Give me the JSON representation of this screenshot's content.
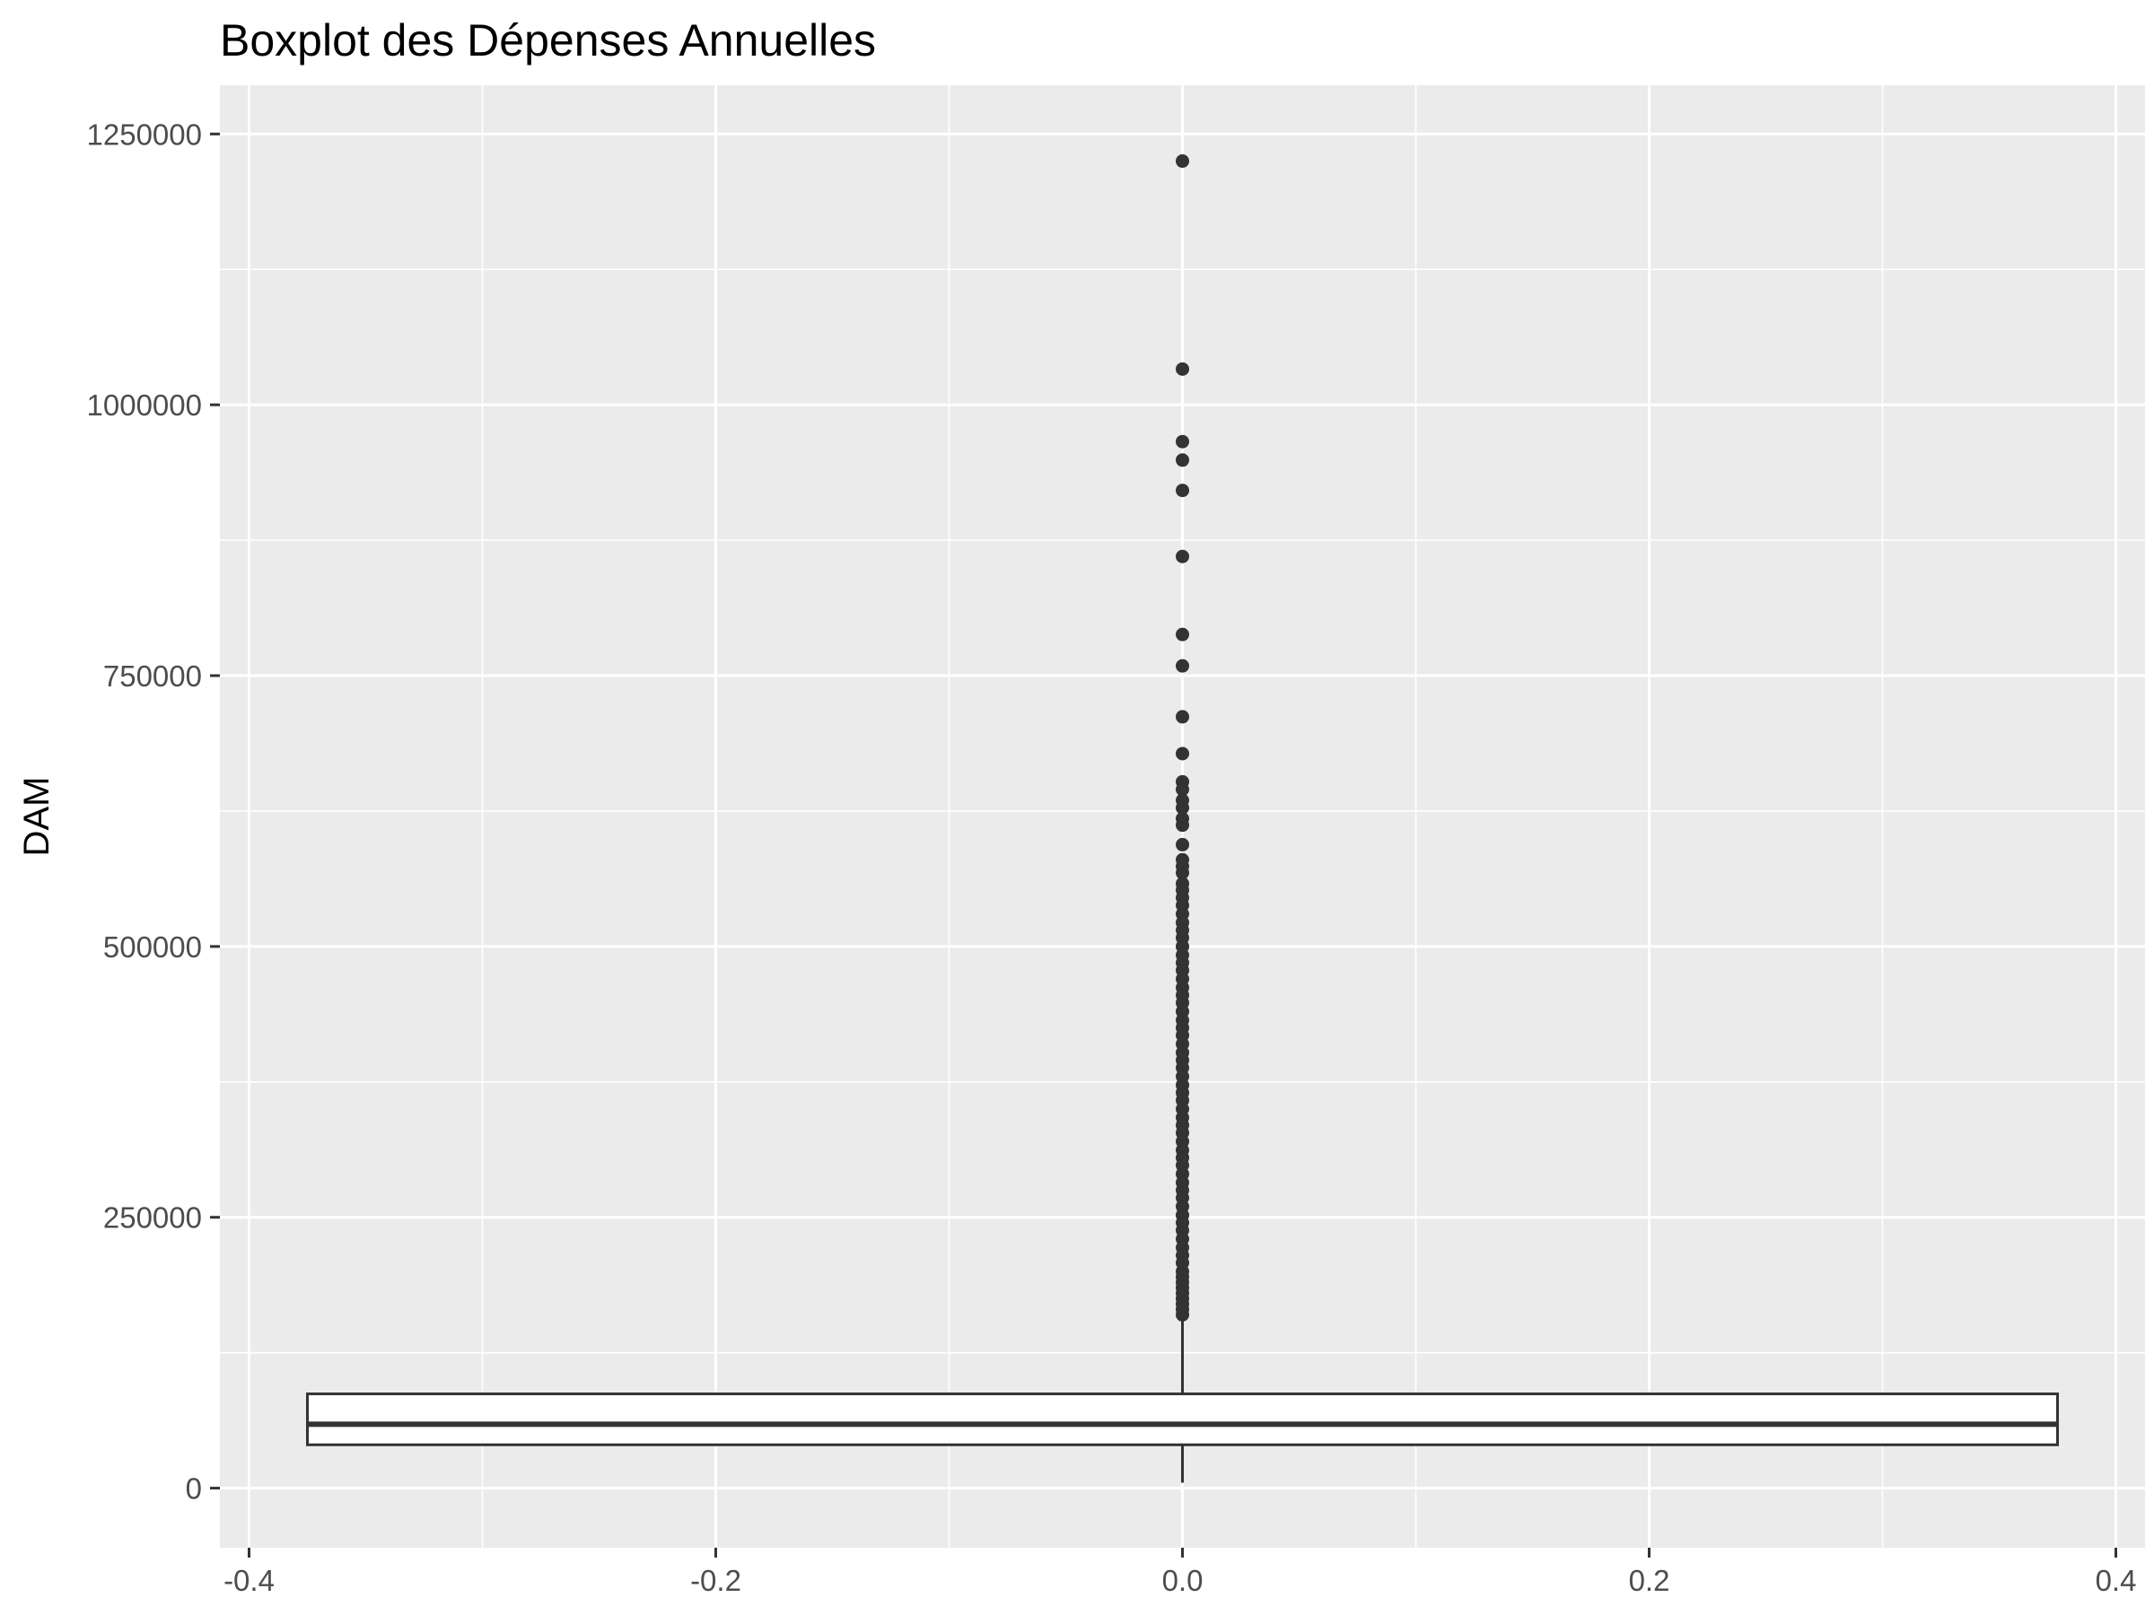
{
  "chart_data": {
    "type": "boxplot",
    "title": "Boxplot des Dépenses Annuelles",
    "xlabel": "",
    "ylabel": "DAM",
    "xlim": [
      -0.4125,
      0.4125
    ],
    "ylim": [
      -55000,
      1295000
    ],
    "x_ticks": [
      -0.4,
      -0.2,
      0.0,
      0.2,
      0.4
    ],
    "x_tick_labels": [
      "-0.4",
      "-0.2",
      "0.0",
      "0.2",
      "0.4"
    ],
    "y_ticks": [
      0,
      250000,
      500000,
      750000,
      1000000,
      1250000
    ],
    "y_tick_labels": [
      "0",
      "250000",
      "500000",
      "750000",
      "1000000",
      "1250000"
    ],
    "grid": true,
    "colors": {
      "panel": "#ebebeb",
      "grid": "#ffffff",
      "box": "#333333",
      "outlier": "#333333",
      "tick_text": "#4d4d4d"
    },
    "box": {
      "x_center": 0.0,
      "x_left": -0.375,
      "x_right": 0.375,
      "whisker_low": 5000,
      "q1": 40000,
      "median": 59000,
      "q3": 87000,
      "whisker_high": 157000
    },
    "outliers": [
      1225000,
      1033000,
      966000,
      949000,
      921000,
      860000,
      788000,
      759000,
      712000,
      678000,
      652000,
      645000,
      635000,
      628000,
      618000,
      612000,
      594000,
      580000,
      574000,
      568000,
      558000,
      552000,
      545000,
      538000,
      530000,
      522000,
      515000,
      508000,
      500000,
      492000,
      485000,
      478000,
      470000,
      462000,
      455000,
      448000,
      440000,
      432000,
      425000,
      418000,
      410000,
      402000,
      395000,
      388000,
      380000,
      372000,
      365000,
      358000,
      350000,
      342000,
      335000,
      328000,
      320000,
      312000,
      305000,
      298000,
      290000,
      282000,
      275000,
      268000,
      260000,
      252000,
      245000,
      238000,
      230000,
      222000,
      215000,
      208000,
      200000,
      195000,
      190000,
      185000,
      180000,
      175000,
      170000,
      165000,
      160000
    ]
  }
}
